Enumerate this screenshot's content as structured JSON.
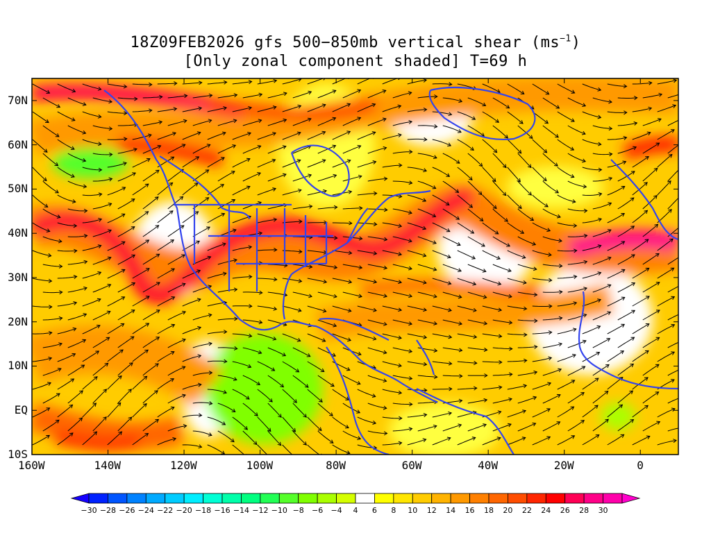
{
  "title": {
    "line1_prefix": "18Z09FEB2026 gfs 500−850mb vertical shear (ms",
    "line1_sup": "−1",
    "line1_suffix": ")",
    "line2": "[Only zonal component shaded] T=69 h"
  },
  "map": {
    "lat_labels": [
      "70N",
      "60N",
      "50N",
      "40N",
      "30N",
      "20N",
      "10N",
      "EQ",
      "10S"
    ],
    "lat_values": [
      70,
      60,
      50,
      40,
      30,
      20,
      10,
      0,
      -10
    ],
    "lon_labels": [
      "160W",
      "140W",
      "120W",
      "100W",
      "80W",
      "60W",
      "40W",
      "20W",
      "0"
    ],
    "lon_values": [
      -160,
      -140,
      -120,
      -100,
      -80,
      -60,
      -40,
      -20,
      0
    ],
    "lat_range": [
      -10,
      75
    ],
    "lon_range": [
      -160,
      10
    ],
    "coastline_color": "#3344ee",
    "streamline_color": "#000000"
  },
  "colorbar": {
    "tick_labels": [
      "−30",
      "−28",
      "−26",
      "−24",
      "−22",
      "−20",
      "−18",
      "−16",
      "−14",
      "−12",
      "−10",
      "−8",
      "−6",
      "−4",
      "4",
      "6",
      "8",
      "10",
      "12",
      "14",
      "16",
      "18",
      "20",
      "22",
      "24",
      "26",
      "28",
      "30"
    ],
    "colors": [
      "#1500ff",
      "#0022ff",
      "#0055ff",
      "#0082ff",
      "#00aaff",
      "#00ccff",
      "#00eeff",
      "#00ffd5",
      "#00ffaa",
      "#00ff80",
      "#22ff55",
      "#55ff2a",
      "#80ff00",
      "#aaff00",
      "#d5ff00",
      "#ffffff",
      "#ffff00",
      "#ffe600",
      "#ffcc00",
      "#ffb300",
      "#ff9900",
      "#ff8000",
      "#ff6600",
      "#ff4d00",
      "#ff2600",
      "#ff0000",
      "#ff0055",
      "#ff0088",
      "#ff00aa",
      "#ff00cc"
    ]
  }
}
